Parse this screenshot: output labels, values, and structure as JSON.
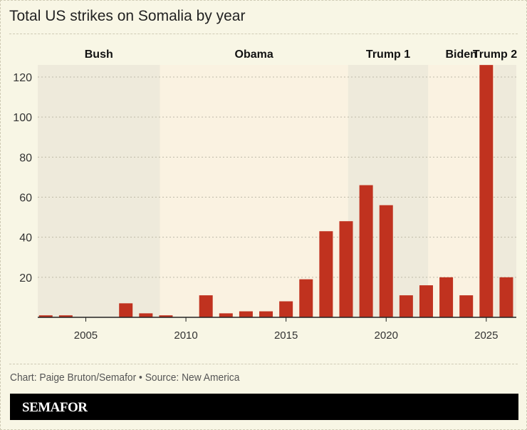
{
  "chart_data": {
    "type": "bar",
    "title": "Total US strikes on Somalia by year",
    "x": [
      2003,
      2004,
      2005,
      2006,
      2007,
      2008,
      2009,
      2010,
      2011,
      2012,
      2013,
      2014,
      2015,
      2016,
      2017,
      2018,
      2019,
      2020,
      2021,
      2022,
      2023,
      2024,
      2025,
      2026
    ],
    "values": [
      1,
      1,
      0,
      0,
      7,
      2,
      1,
      0,
      11,
      2,
      3,
      3,
      8,
      19,
      43,
      48,
      66,
      56,
      11,
      16,
      20,
      11,
      126,
      20
    ],
    "xlim": [
      2002.6,
      2026.5
    ],
    "ylim": [
      0,
      126
    ],
    "xticks": [
      "2005",
      "2010",
      "2015",
      "2020",
      "2025"
    ],
    "yticks": [
      "20",
      "40",
      "60",
      "80",
      "100",
      "120"
    ],
    "grid": "horizontal dashed",
    "bar_color": "#c0321f",
    "eras": [
      {
        "label": "Bush",
        "start": 2002.6,
        "end": 2008.7,
        "shade": "#eeeadb"
      },
      {
        "label": "Obama",
        "start": 2008.7,
        "end": 2018.1,
        "shade": "#faf2e1"
      },
      {
        "label": "Trump 1",
        "start": 2018.1,
        "end": 2022.1,
        "shade": "#eeeadb"
      },
      {
        "label": "Biden",
        "start": 2022.1,
        "end": 2025.4,
        "shade": "#faf2e1"
      },
      {
        "label": "Trump 2",
        "start": 2025.4,
        "end": 2026.5,
        "shade": "#eeeadb"
      }
    ]
  },
  "footer": {
    "credit": "Chart: Paige Bruton/Semafor • Source: New America",
    "brand": "SEMAFOR"
  }
}
